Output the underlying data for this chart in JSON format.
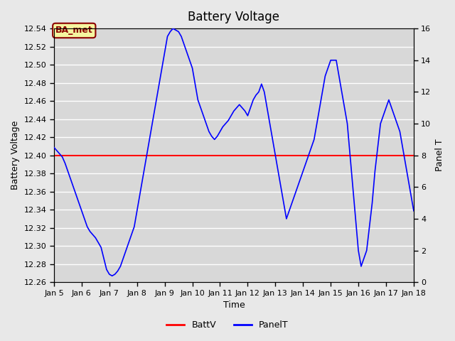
{
  "title": "Battery Voltage",
  "xlabel": "Time",
  "ylabel_left": "Battery Voltage",
  "ylabel_right": "Panel T",
  "annotation_text": "BA_met",
  "background_color": "#e8e8e8",
  "plot_bg_color": "#d8d8d8",
  "grid_color": "white",
  "xlim_days": [
    5,
    18
  ],
  "ylim_left": [
    12.26,
    12.54
  ],
  "ylim_right": [
    0,
    16
  ],
  "battv_value": 12.4,
  "battv_color": "red",
  "panelt_color": "blue",
  "legend_items": [
    "BattV",
    "PanelT"
  ],
  "xtick_labels": [
    "Jan 5",
    "Jan 6",
    "Jan 7",
    "Jan 8",
    "Jan 9",
    "Jan 10",
    "Jan 11",
    "Jan 12",
    "Jan 13",
    "Jan 14",
    "Jan 15",
    "Jan 16",
    "Jan 17",
    "Jan 18"
  ],
  "xtick_positions": [
    5,
    6,
    7,
    8,
    9,
    10,
    11,
    12,
    13,
    14,
    15,
    16,
    17,
    18
  ],
  "ytick_left": [
    12.26,
    12.28,
    12.3,
    12.32,
    12.34,
    12.36,
    12.38,
    12.4,
    12.42,
    12.44,
    12.46,
    12.48,
    12.5,
    12.52,
    12.54
  ],
  "ytick_right": [
    0,
    2,
    4,
    6,
    8,
    10,
    12,
    14,
    16
  ],
  "panelt_x": [
    5.0,
    5.1,
    5.2,
    5.3,
    5.4,
    5.5,
    5.6,
    5.7,
    5.8,
    5.9,
    6.0,
    6.1,
    6.2,
    6.3,
    6.4,
    6.5,
    6.6,
    6.7,
    6.8,
    6.9,
    7.0,
    7.1,
    7.2,
    7.3,
    7.4,
    7.5,
    7.6,
    7.7,
    7.8,
    7.9,
    8.0,
    8.1,
    8.2,
    8.3,
    8.4,
    8.5,
    8.6,
    8.7,
    8.8,
    8.9,
    9.0,
    9.1,
    9.2,
    9.3,
    9.4,
    9.5,
    9.6,
    9.7,
    9.8,
    9.9,
    10.0,
    10.1,
    10.2,
    10.3,
    10.4,
    10.5,
    10.6,
    10.7,
    10.8,
    10.9,
    11.0,
    11.1,
    11.2,
    11.3,
    11.4,
    11.5,
    11.6,
    11.7,
    11.8,
    11.9,
    12.0,
    12.1,
    12.2,
    12.3,
    12.4,
    12.5,
    12.6,
    12.7,
    12.8,
    12.9,
    13.0,
    13.1,
    13.2,
    13.3,
    13.4,
    13.5,
    13.6,
    13.7,
    13.8,
    13.9,
    14.0,
    14.1,
    14.2,
    14.3,
    14.4,
    14.5,
    14.6,
    14.7,
    14.8,
    14.9,
    15.0,
    15.1,
    15.2,
    15.3,
    15.4,
    15.5,
    15.6,
    15.7,
    15.8,
    15.9,
    16.0,
    16.1,
    16.2,
    16.3,
    16.4,
    16.5,
    16.6,
    16.7,
    16.8,
    16.9,
    17.0,
    17.1,
    17.2,
    17.3,
    17.4,
    17.5,
    17.6,
    17.7,
    17.8,
    17.9,
    18.0
  ],
  "panelt_y": [
    8.5,
    8.3,
    8.1,
    7.9,
    7.5,
    7.0,
    6.5,
    6.0,
    5.5,
    5.0,
    4.5,
    4.0,
    3.5,
    3.2,
    3.0,
    2.8,
    2.5,
    2.2,
    1.5,
    0.8,
    0.5,
    0.4,
    0.5,
    0.7,
    1.0,
    1.5,
    2.0,
    2.5,
    3.0,
    3.5,
    4.5,
    5.5,
    6.5,
    7.5,
    8.5,
    9.5,
    10.5,
    11.5,
    12.5,
    13.5,
    14.5,
    15.5,
    15.8,
    16.0,
    15.9,
    15.8,
    15.5,
    15.0,
    14.5,
    14.0,
    13.5,
    12.5,
    11.5,
    11.0,
    10.5,
    10.0,
    9.5,
    9.2,
    9.0,
    9.2,
    9.5,
    9.8,
    10.0,
    10.2,
    10.5,
    10.8,
    11.0,
    11.2,
    11.0,
    10.8,
    10.5,
    11.0,
    11.5,
    11.8,
    12.0,
    12.5,
    12.0,
    11.0,
    10.0,
    9.0,
    8.0,
    7.0,
    6.0,
    5.0,
    4.0,
    4.5,
    5.0,
    5.5,
    6.0,
    6.5,
    7.0,
    7.5,
    8.0,
    8.5,
    9.0,
    10.0,
    11.0,
    12.0,
    13.0,
    13.5,
    14.0,
    14.0,
    14.0,
    13.0,
    12.0,
    11.0,
    10.0,
    8.0,
    6.0,
    4.0,
    2.0,
    1.0,
    1.5,
    2.0,
    3.5,
    5.0,
    7.0,
    8.5,
    10.0,
    10.5,
    11.0,
    11.5,
    11.0,
    10.5,
    10.0,
    9.5,
    8.5,
    7.5,
    6.5,
    5.5,
    4.5
  ]
}
